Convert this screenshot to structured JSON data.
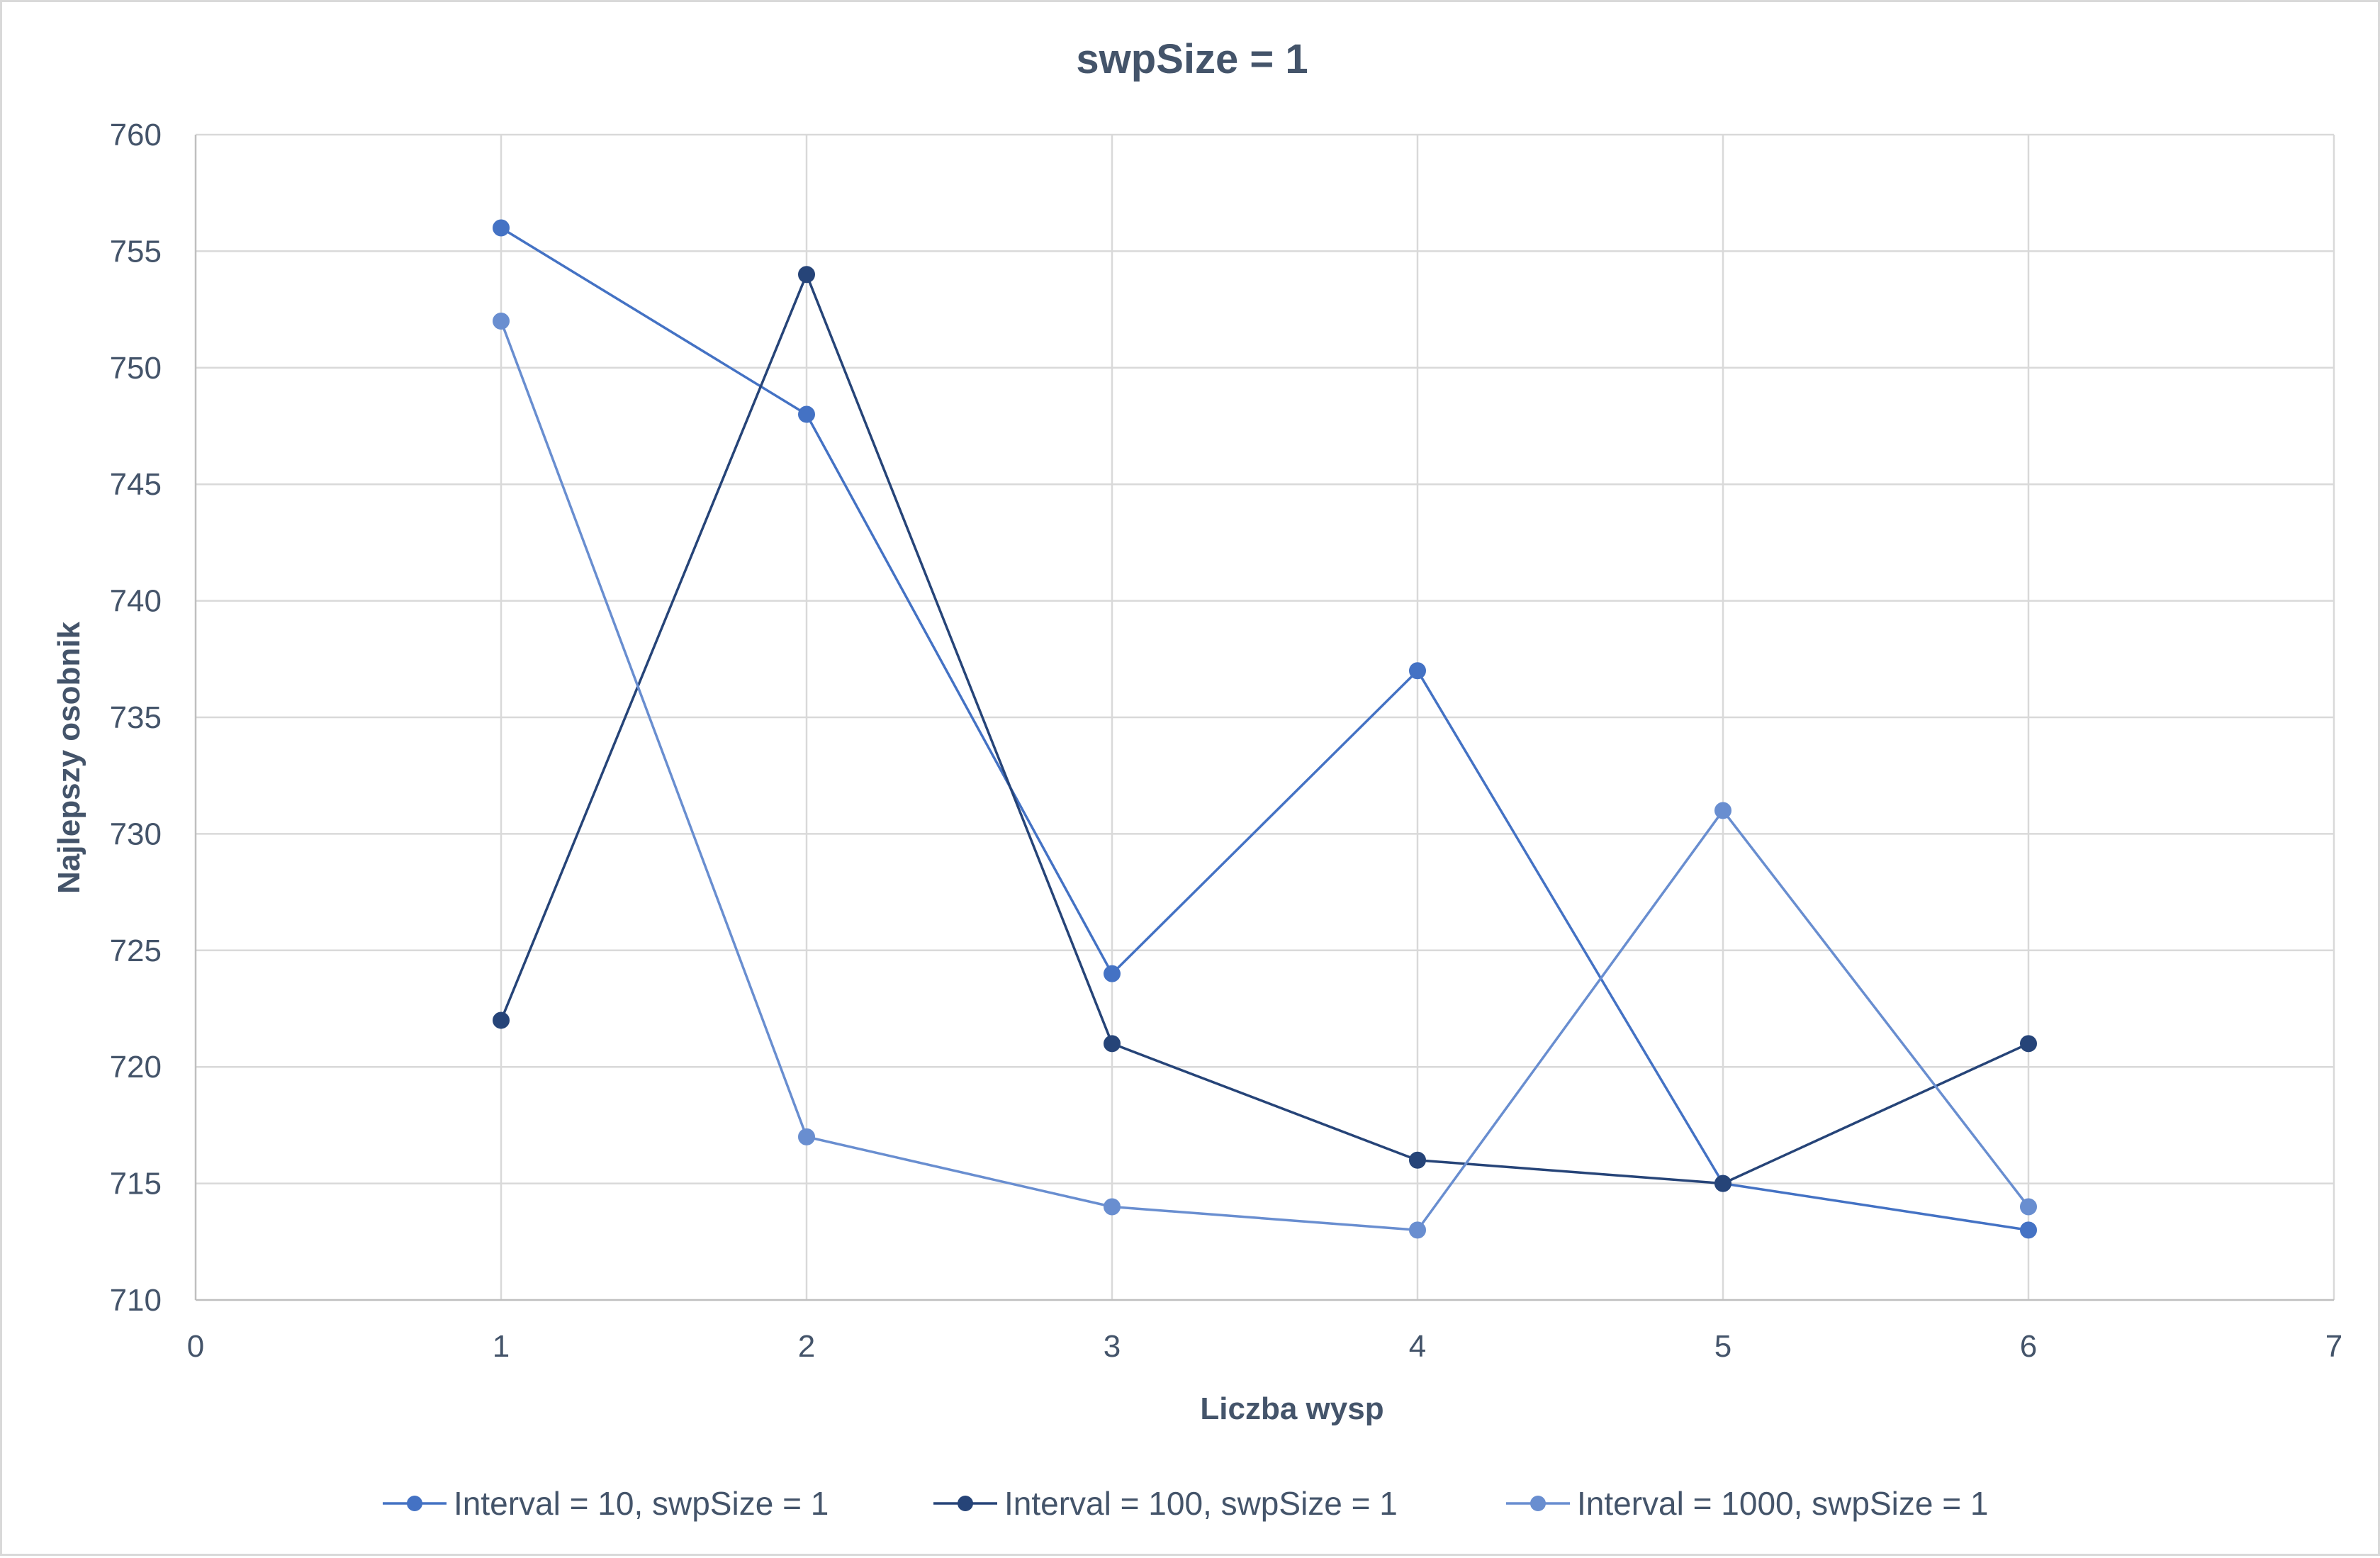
{
  "chart_data": {
    "type": "scatter",
    "title": "swpSize = 1",
    "xlabel": "Liczba wysp",
    "ylabel": "Najlepszy osobnik",
    "xlim": [
      0,
      7
    ],
    "ylim": [
      710,
      760
    ],
    "xticks": [
      0,
      1,
      2,
      3,
      4,
      5,
      6,
      7
    ],
    "yticks": [
      710,
      715,
      720,
      725,
      730,
      735,
      740,
      745,
      750,
      755,
      760
    ],
    "grid": true,
    "legend_position": "bottom",
    "markers": true,
    "lines": true,
    "series": [
      {
        "name": "Interval = 10, swpSize = 1",
        "color": "#4472c4",
        "x": [
          1,
          2,
          3,
          4,
          5,
          6
        ],
        "y": [
          756,
          748,
          724,
          737,
          715,
          713
        ]
      },
      {
        "name": "Interval = 100, swpSize = 1",
        "color": "#264478",
        "x": [
          1,
          2,
          3,
          4,
          5,
          6
        ],
        "y": [
          722,
          754,
          721,
          716,
          715,
          721
        ]
      },
      {
        "name": "Interval = 1000, swpSize = 1",
        "color": "#698ed0",
        "x": [
          1,
          2,
          3,
          4,
          5,
          6
        ],
        "y": [
          752,
          717,
          714,
          713,
          731,
          714
        ]
      }
    ]
  },
  "colors": {
    "grid": "#d9d9d9",
    "axis": "#bfbfbf",
    "text": "#44546a",
    "border": "#d9d9d9"
  }
}
